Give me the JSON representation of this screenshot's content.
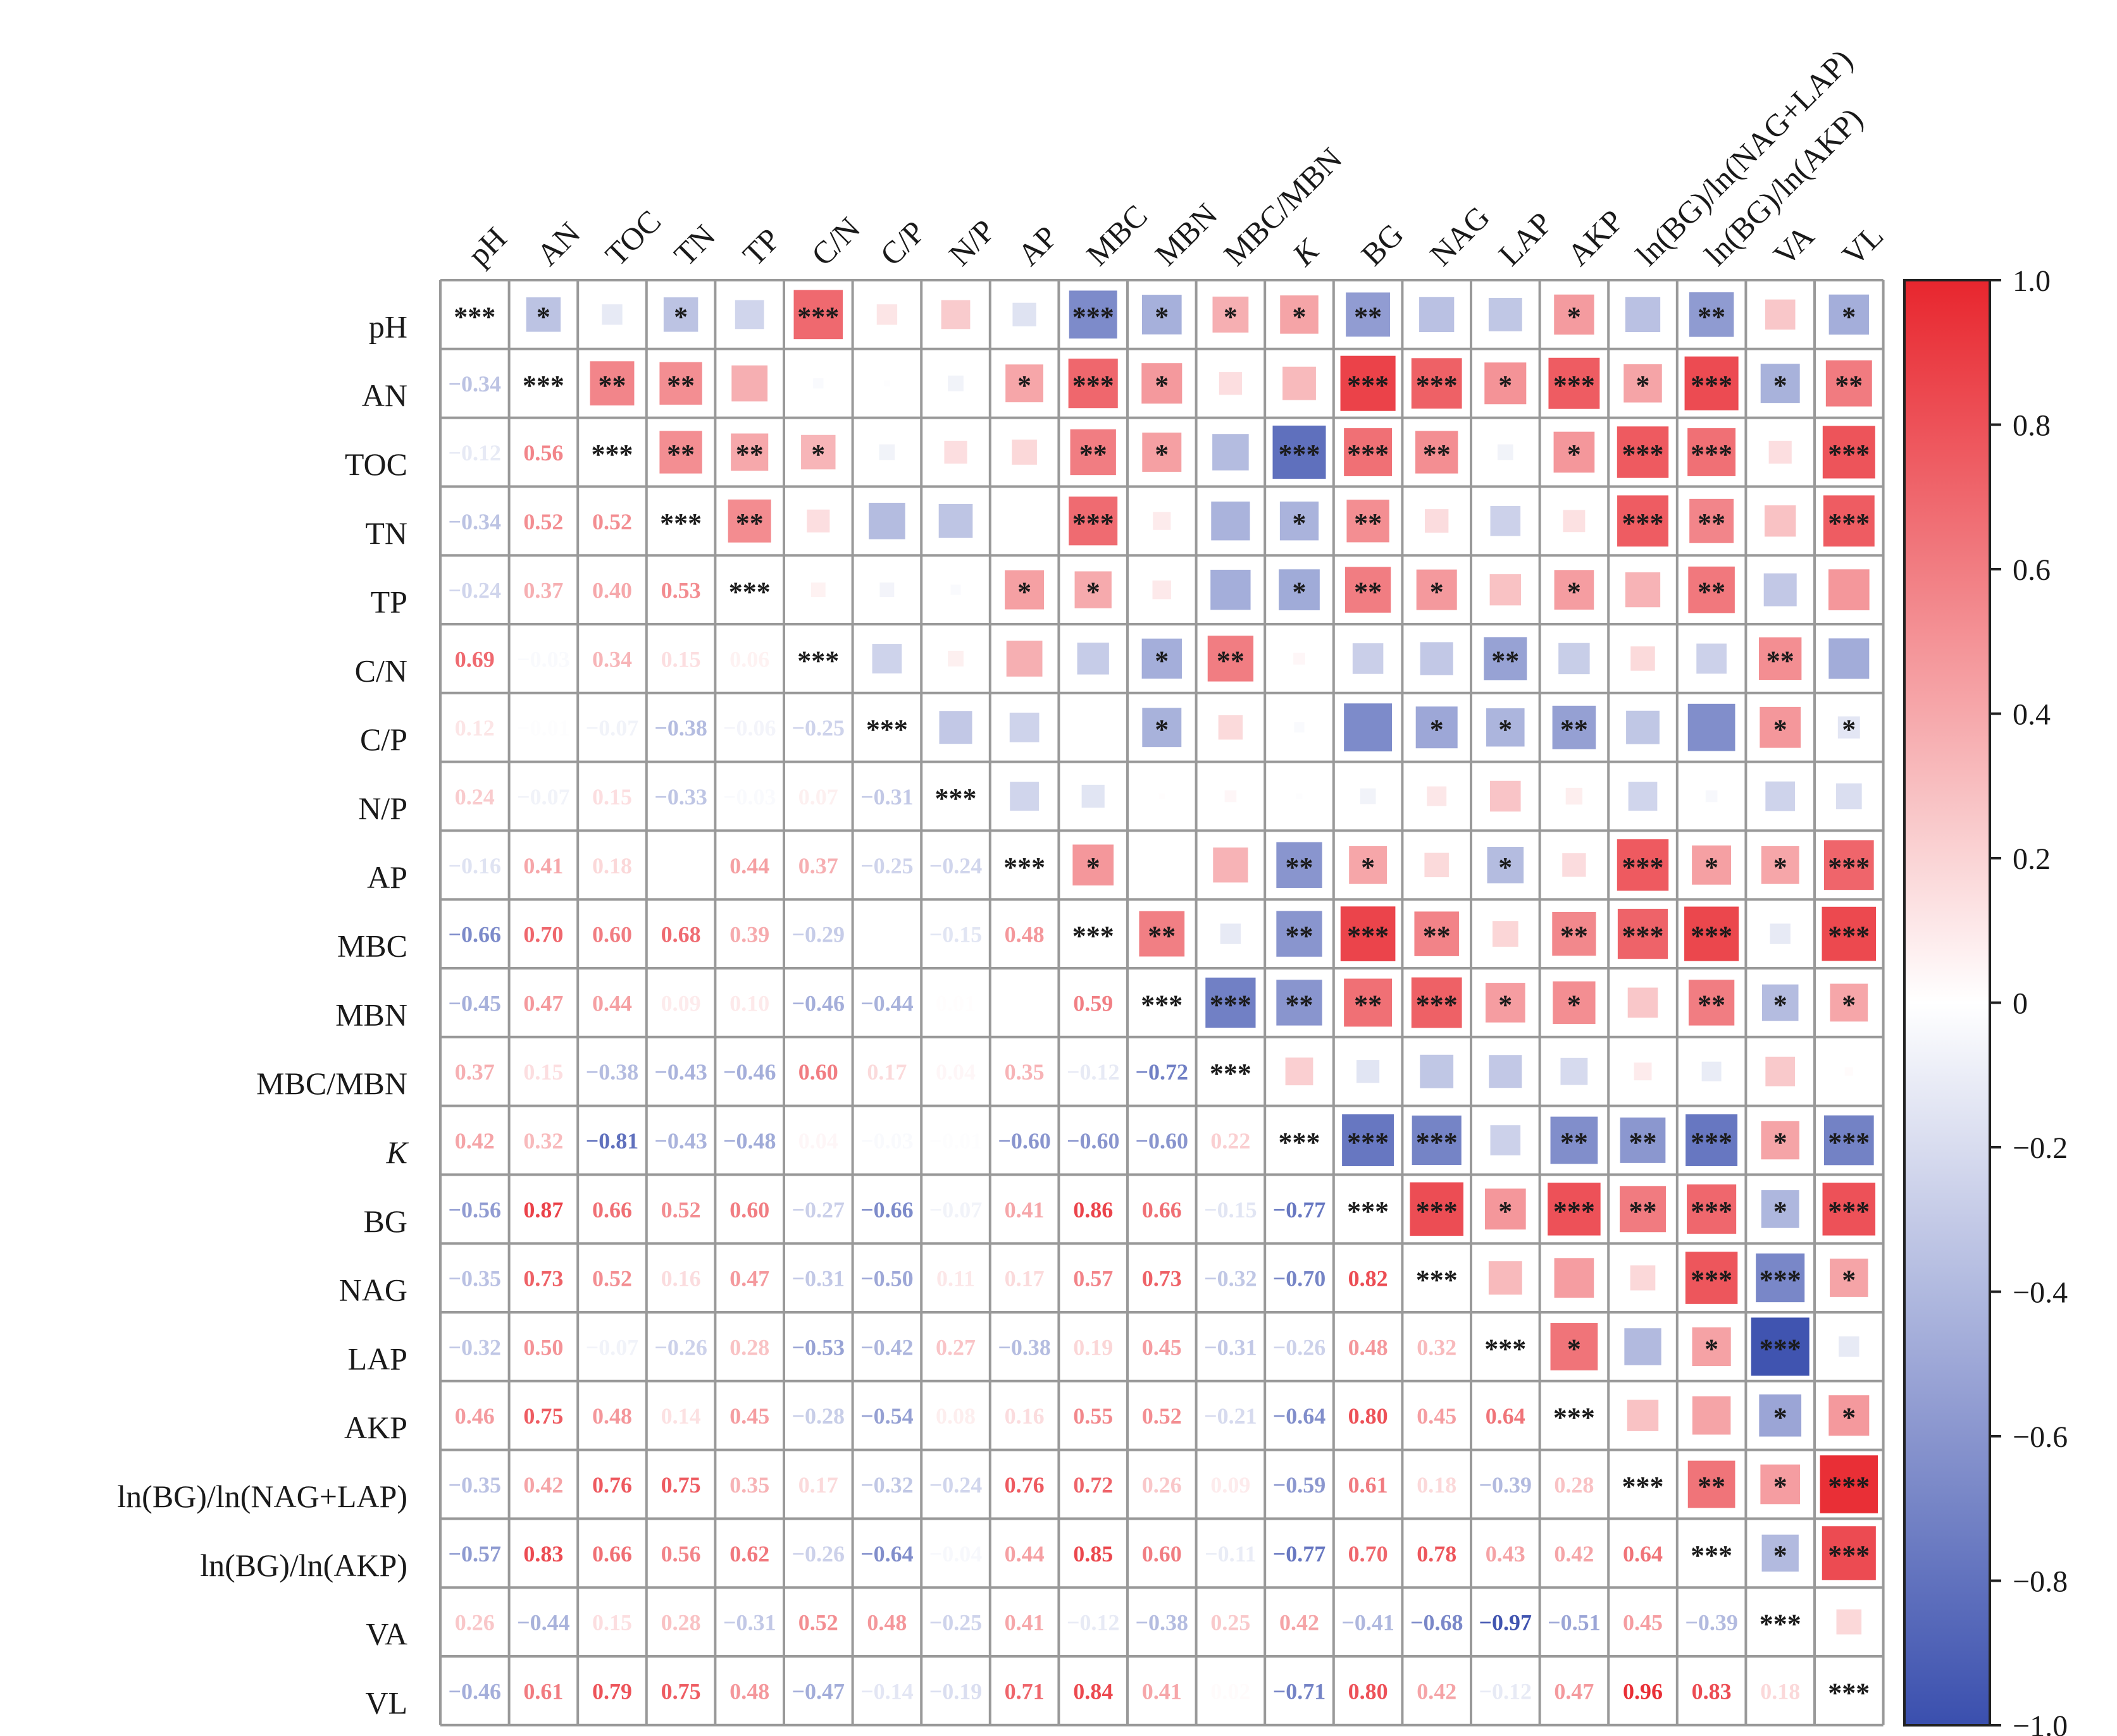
{
  "chart_data": {
    "type": "heatmap",
    "style": "correlation matrix: lower triangle coefficients, upper triangle colored squares sized by |r| with significance stars",
    "variables": [
      "pH",
      "AN",
      "TOC",
      "TN",
      "TP",
      "C/N",
      "C/P",
      "N/P",
      "AP",
      "MBC",
      "MBN",
      "MBC/MBN",
      "K",
      "BG",
      "NAG",
      "LAP",
      "AKP",
      "ln(BG)/ln(NAG+LAP)",
      "ln(BG)/ln(AKP)",
      "VA",
      "VL"
    ],
    "italic_variables": [
      "K"
    ],
    "matrix": [
      [
        1,
        -0.34,
        -0.12,
        -0.34,
        -0.24,
        0.69,
        0.12,
        0.24,
        -0.16,
        -0.66,
        -0.45,
        0.37,
        0.42,
        -0.56,
        -0.35,
        -0.32,
        0.46,
        -0.35,
        -0.57,
        0.26,
        -0.46
      ],
      [
        -0.34,
        1,
        0.56,
        0.52,
        0.37,
        -0.03,
        -0.01,
        -0.07,
        0.41,
        0.7,
        0.47,
        0.15,
        0.32,
        0.87,
        0.73,
        0.5,
        0.75,
        0.42,
        0.83,
        -0.44,
        0.61
      ],
      [
        -0.12,
        0.56,
        1,
        0.52,
        0.4,
        0.34,
        -0.07,
        0.15,
        0.18,
        0.6,
        0.44,
        -0.38,
        -0.81,
        0.66,
        0.52,
        -0.07,
        0.48,
        0.76,
        0.66,
        0.15,
        0.79
      ],
      [
        -0.34,
        0.52,
        0.52,
        1,
        0.53,
        0.15,
        -0.38,
        -0.33,
        0.0,
        0.68,
        0.09,
        -0.43,
        -0.43,
        0.52,
        0.16,
        -0.26,
        0.14,
        0.75,
        0.56,
        0.28,
        0.75
      ],
      [
        -0.24,
        0.37,
        0.4,
        0.53,
        1,
        0.06,
        -0.06,
        -0.03,
        0.44,
        0.39,
        0.1,
        -0.46,
        -0.48,
        0.6,
        0.47,
        0.28,
        0.45,
        0.35,
        0.62,
        -0.31,
        0.48
      ],
      [
        0.69,
        -0.03,
        0.34,
        0.15,
        0.06,
        1,
        -0.25,
        0.07,
        0.37,
        -0.29,
        -0.46,
        0.6,
        0.04,
        -0.27,
        -0.31,
        -0.53,
        -0.28,
        0.17,
        -0.26,
        0.52,
        -0.47
      ],
      [
        0.12,
        -0.01,
        -0.07,
        -0.38,
        -0.06,
        -0.25,
        1,
        -0.31,
        -0.25,
        0.0,
        -0.44,
        0.17,
        -0.03,
        -0.66,
        -0.5,
        -0.42,
        -0.54,
        -0.32,
        -0.64,
        0.48,
        -0.14
      ],
      [
        0.24,
        -0.07,
        0.15,
        -0.33,
        -0.03,
        0.07,
        -0.31,
        1,
        -0.24,
        -0.15,
        0.01,
        0.04,
        -0.01,
        -0.07,
        0.11,
        0.27,
        0.08,
        -0.24,
        -0.04,
        -0.25,
        -0.19
      ],
      [
        -0.16,
        0.41,
        0.18,
        0.0,
        0.44,
        0.37,
        -0.25,
        -0.24,
        1,
        0.48,
        0.0,
        0.35,
        -0.6,
        0.41,
        0.17,
        -0.38,
        0.16,
        0.76,
        0.44,
        0.41,
        0.71
      ],
      [
        -0.66,
        0.7,
        0.6,
        0.68,
        0.39,
        -0.29,
        0.0,
        -0.15,
        0.48,
        1,
        0.59,
        -0.12,
        -0.6,
        0.86,
        0.57,
        0.19,
        0.55,
        0.72,
        0.85,
        -0.12,
        0.84
      ],
      [
        -0.45,
        0.47,
        0.44,
        0.09,
        0.1,
        -0.46,
        -0.44,
        0.01,
        0.0,
        0.59,
        1,
        -0.72,
        -0.6,
        0.66,
        0.73,
        0.45,
        0.52,
        0.26,
        0.6,
        -0.38,
        0.41
      ],
      [
        0.37,
        0.15,
        -0.38,
        -0.43,
        -0.46,
        0.6,
        0.17,
        0.04,
        0.35,
        -0.12,
        -0.72,
        1,
        0.22,
        -0.15,
        -0.32,
        -0.31,
        -0.21,
        0.09,
        -0.11,
        0.25,
        0.02
      ],
      [
        0.42,
        0.32,
        -0.81,
        -0.43,
        -0.48,
        0.04,
        -0.03,
        -0.01,
        -0.6,
        -0.6,
        -0.6,
        0.22,
        1,
        -0.77,
        -0.7,
        -0.26,
        -0.64,
        -0.59,
        -0.77,
        0.42,
        -0.71
      ],
      [
        -0.56,
        0.87,
        0.66,
        0.52,
        0.6,
        -0.27,
        -0.66,
        -0.07,
        0.41,
        0.86,
        0.66,
        -0.15,
        -0.77,
        1,
        0.82,
        0.48,
        0.8,
        0.61,
        0.7,
        -0.41,
        0.8
      ],
      [
        -0.35,
        0.73,
        0.52,
        0.16,
        0.47,
        -0.31,
        -0.5,
        0.11,
        0.17,
        0.57,
        0.73,
        -0.32,
        -0.7,
        0.82,
        1,
        0.32,
        0.45,
        0.18,
        0.78,
        -0.68,
        0.42
      ],
      [
        -0.32,
        0.5,
        -0.07,
        -0.26,
        0.28,
        -0.53,
        -0.42,
        0.27,
        -0.38,
        0.19,
        0.45,
        -0.31,
        -0.26,
        0.48,
        0.32,
        1,
        0.64,
        -0.39,
        0.43,
        -0.97,
        -0.12
      ],
      [
        0.46,
        0.75,
        0.48,
        0.14,
        0.45,
        -0.28,
        -0.54,
        0.08,
        0.16,
        0.55,
        0.52,
        -0.21,
        -0.64,
        0.8,
        0.45,
        0.64,
        1,
        0.28,
        0.42,
        -0.51,
        0.47
      ],
      [
        -0.35,
        0.42,
        0.76,
        0.75,
        0.35,
        0.17,
        -0.32,
        -0.24,
        0.76,
        0.72,
        0.26,
        0.09,
        -0.59,
        0.61,
        0.18,
        -0.39,
        0.28,
        1,
        0.64,
        0.45,
        0.96
      ],
      [
        -0.57,
        0.83,
        0.66,
        0.56,
        0.62,
        -0.26,
        -0.64,
        -0.04,
        0.44,
        0.85,
        0.6,
        -0.11,
        -0.77,
        0.7,
        0.78,
        0.43,
        0.42,
        0.64,
        1,
        -0.39,
        0.83
      ],
      [
        0.26,
        -0.44,
        0.15,
        0.28,
        -0.31,
        0.52,
        0.48,
        -0.25,
        0.41,
        -0.12,
        -0.38,
        0.25,
        0.42,
        -0.41,
        -0.68,
        -0.97,
        -0.51,
        0.45,
        -0.39,
        1,
        0.18
      ],
      [
        -0.46,
        0.61,
        0.79,
        0.75,
        0.48,
        -0.47,
        -0.14,
        -0.19,
        0.71,
        0.84,
        0.41,
        0.02,
        -0.71,
        0.8,
        0.42,
        -0.12,
        0.47,
        0.96,
        0.83,
        0.18,
        1
      ]
    ],
    "lower_labels": [
      [],
      [
        "-0.34"
      ],
      [
        "-0.12",
        "0.56"
      ],
      [
        "-0.34",
        "0.52",
        "0.52"
      ],
      [
        "-0.24",
        "0.37",
        "0.40",
        "0.53"
      ],
      [
        "0.69",
        "-0.03",
        "0.34",
        "0.15",
        "0.06"
      ],
      [
        "0.12",
        "-0.01",
        "-0.07",
        "-0.38",
        "-0.06",
        "-0.25"
      ],
      [
        "0.24",
        "-0.07",
        "0.15",
        "-0.33",
        "-0.03",
        "0.07",
        "-0.31"
      ],
      [
        "-0.16",
        "0.41",
        "0.18",
        "",
        "0.44",
        "0.37",
        "-0.25",
        "-0.24"
      ],
      [
        "-0.66",
        "0.70",
        "0.60",
        "0.68",
        "0.39",
        "-0.29",
        "",
        "-0.15",
        "0.48"
      ],
      [
        "-0.45",
        "0.47",
        "0.44",
        "0.09",
        "0.10",
        "-0.46",
        "-0.44",
        "0.01",
        "0.00",
        "0.59"
      ],
      [
        "0.37",
        "0.15",
        "-0.38",
        "-0.43",
        "-0.46",
        "0.60",
        "0.17",
        "0.04",
        "0.35",
        "-0.12",
        "-0.72"
      ],
      [
        "0.42",
        "0.32",
        "-0.81",
        "-0.43",
        "-0.48",
        "0.04",
        "-0.03",
        "-0.01",
        "-0.60",
        "-0.60",
        "-0.60",
        "0.22"
      ],
      [
        "-0.56",
        "0.87",
        "0.66",
        "0.52",
        "0.60",
        "-0.27",
        "-0.66",
        "-0.07",
        "0.41",
        "0.86",
        "0.66",
        "-0.15",
        "-0.77"
      ],
      [
        "-0.35",
        "0.73",
        "0.52",
        "0.16",
        "0.47",
        "-0.31",
        "-0.50",
        "0.11",
        "0.17",
        "0.57",
        "0.73",
        "-0.32",
        "-0.70",
        "0.82"
      ],
      [
        "-0.32",
        "0.50",
        "-0.07",
        "-0.26",
        "0.28",
        "-0.53",
        "-0.42",
        "0.27",
        "-0.38",
        "0.19",
        "0.45",
        "-0.31",
        "-0.26",
        "0.48",
        "0.32"
      ],
      [
        "0.46",
        "0.75",
        "0.48",
        "0.14",
        "0.45",
        "-0.28",
        "-0.54",
        "0.08",
        "0.16",
        "0.55",
        "0.52",
        "-0.21",
        "-0.64",
        "0.80",
        "0.45",
        "0.64"
      ],
      [
        "-0.35",
        "0.42",
        "0.76",
        "0.75",
        "0.35",
        "0.17",
        "-0.32",
        "-0.24",
        "0.76",
        "0.72",
        "0.26",
        "0.09",
        "-0.59",
        "0.61",
        "0.18",
        "-0.39",
        "0.28"
      ],
      [
        "-0.57",
        "0.83",
        "0.66",
        "0.56",
        "0.62",
        "-0.26",
        "-0.64",
        "-0.04",
        "0.44",
        "0.85",
        "0.60",
        "-0.11",
        "-0.77",
        "0.70",
        "0.78",
        "0.43",
        "0.42",
        "0.64"
      ],
      [
        "0.26",
        "-0.44",
        "0.15",
        "0.28",
        "-0.31",
        "0.52",
        "0.48",
        "-0.25",
        "0.41",
        "-0.12",
        "-0.38",
        "0.25",
        "0.42",
        "-0.41",
        "-0.68",
        "-0.97",
        "-0.51",
        "0.45",
        "-0.39"
      ],
      [
        "-0.46",
        "0.61",
        "0.79",
        "0.75",
        "0.48",
        "-0.47",
        "-0.14",
        "-0.19",
        "0.71",
        "0.84",
        "0.41",
        "0.02",
        "-0.71",
        "0.80",
        "0.42",
        "-0.12",
        "0.47",
        "0.96",
        "0.83",
        "0.18"
      ]
    ],
    "diagonal_label": "***",
    "upper_stars": [
      [
        "",
        "*",
        "",
        "*",
        "",
        "***",
        "",
        "",
        "",
        "***",
        "*",
        "*",
        "*",
        "**",
        "",
        "",
        "*",
        "",
        "**",
        "",
        "*"
      ],
      [
        "",
        "",
        "**",
        "**",
        "",
        "",
        "",
        "",
        "*",
        "***",
        "*",
        "",
        "",
        "***",
        "***",
        "*",
        "***",
        "*",
        "***",
        "*",
        "**"
      ],
      [
        "",
        "",
        "",
        "**",
        "**",
        "*",
        "",
        "",
        "",
        "**",
        "*",
        "",
        "***",
        "***",
        "**",
        "",
        "*",
        "***",
        "***",
        "",
        "***"
      ],
      [
        "",
        "",
        "",
        "",
        "**",
        "",
        "",
        "",
        "",
        "***",
        "",
        "",
        "*",
        "**",
        "",
        "",
        "",
        "***",
        "**",
        "",
        "***"
      ],
      [
        "",
        "",
        "",
        "",
        "",
        "",
        "",
        "",
        "*",
        "*",
        "",
        "",
        "*",
        "**",
        "*",
        "",
        "*",
        "",
        "**",
        "",
        ""
      ],
      [
        "",
        "",
        "",
        "",
        "",
        "",
        "",
        "",
        "",
        "",
        "*",
        "**",
        "",
        "",
        "",
        "**",
        "",
        "",
        "",
        "**",
        ""
      ],
      [
        "",
        "",
        "",
        "",
        "",
        "",
        "",
        "",
        "",
        "",
        "*",
        "",
        "",
        "",
        "*",
        "*",
        "**",
        "",
        "",
        "*",
        "*"
      ],
      [
        "",
        "",
        "",
        "",
        "",
        "",
        "",
        "",
        "",
        "",
        "",
        "",
        "",
        "",
        "",
        "",
        "",
        "",
        "",
        "",
        ""
      ],
      [
        "",
        "",
        "",
        "",
        "",
        "",
        "",
        "",
        "",
        "*",
        "",
        "",
        "**",
        "*",
        "",
        "*",
        "",
        "***",
        "*",
        "*",
        "***"
      ],
      [
        "",
        "",
        "",
        "",
        "",
        "",
        "",
        "",
        "",
        "",
        "**",
        "",
        "**",
        "***",
        "**",
        "",
        "**",
        "***",
        "***",
        "",
        "***"
      ],
      [
        "",
        "",
        "",
        "",
        "",
        "",
        "",
        "",
        "",
        "",
        "",
        "***",
        "**",
        "**",
        "***",
        "*",
        "*",
        "",
        "**",
        "*",
        "*"
      ],
      [
        "",
        "",
        "",
        "",
        "",
        "",
        "",
        "",
        "",
        "",
        "",
        "",
        "",
        "",
        "",
        "",
        "",
        "",
        "",
        "",
        ""
      ],
      [
        "",
        "",
        "",
        "",
        "",
        "",
        "",
        "",
        "",
        "",
        "",
        "",
        "",
        "***",
        "***",
        "",
        "**",
        "**",
        "***",
        "*",
        "***"
      ],
      [
        "",
        "",
        "",
        "",
        "",
        "",
        "",
        "",
        "",
        "",
        "",
        "",
        "",
        "",
        "***",
        "*",
        "***",
        "**",
        "***",
        "*",
        "***"
      ],
      [
        "",
        "",
        "",
        "",
        "",
        "",
        "",
        "",
        "",
        "",
        "",
        "",
        "",
        "",
        "",
        "",
        "",
        "",
        "***",
        "***",
        "*"
      ],
      [
        "",
        "",
        "",
        "",
        "",
        "",
        "",
        "",
        "",
        "",
        "",
        "",
        "",
        "",
        "",
        "",
        "*",
        "",
        "*",
        "***",
        ""
      ],
      [
        "",
        "",
        "",
        "",
        "",
        "",
        "",
        "",
        "",
        "",
        "",
        "",
        "",
        "",
        "",
        "",
        "",
        "",
        "",
        "*",
        "*"
      ],
      [
        "",
        "",
        "",
        "",
        "",
        "",
        "",
        "",
        "",
        "",
        "",
        "",
        "",
        "",
        "",
        "",
        "",
        "",
        "**",
        "*",
        "***"
      ],
      [
        "",
        "",
        "",
        "",
        "",
        "",
        "",
        "",
        "",
        "",
        "",
        "",
        "",
        "",
        "",
        "",
        "",
        "",
        "",
        "*",
        "***"
      ],
      [
        "",
        "",
        "",
        "",
        "",
        "",
        "",
        "",
        "",
        "",
        "",
        "",
        "",
        "",
        "",
        "",
        "",
        "",
        "",
        "",
        ""
      ],
      [
        "",
        "",
        "",
        "",
        "",
        "",
        "",
        "",
        "",
        "",
        "",
        "",
        "",
        "",
        "",
        "",
        "",
        "",
        "",
        "",
        ""
      ]
    ],
    "colorbar": {
      "range": [
        -1.0,
        1.0
      ],
      "tick_values": [
        1.0,
        0.8,
        0.6,
        0.4,
        0.2,
        0,
        -0.2,
        -0.4,
        -0.6,
        -0.8,
        -1.0
      ],
      "tick_labels": [
        "1.0",
        "0.8",
        "0.6",
        "0.4",
        "0.2",
        "0",
        "−0.2",
        "−0.4",
        "−0.6",
        "−0.8",
        "−1.0"
      ],
      "colors": {
        "negative": "#3a4fae",
        "zero": "#ffffff",
        "positive": "#e8262e"
      }
    },
    "grid_color": "#999999"
  }
}
